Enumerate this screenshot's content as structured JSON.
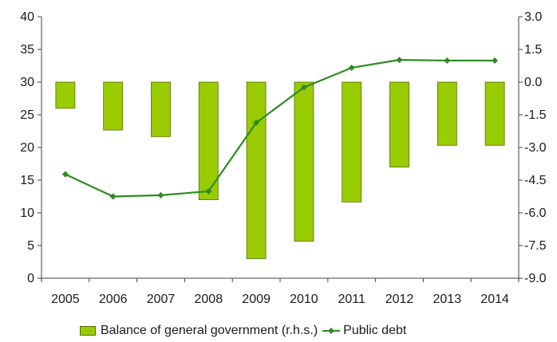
{
  "chart_data": {
    "type": "bar+line",
    "title": "",
    "categories": [
      "2005",
      "2006",
      "2007",
      "2008",
      "2009",
      "2010",
      "2011",
      "2012",
      "2013",
      "2014"
    ],
    "series": [
      {
        "name": "Balance of general government (r.h.s.)",
        "kind": "bar",
        "axis": "right",
        "color": "#99cc00",
        "values": [
          -1.2,
          -2.2,
          -2.5,
          -5.4,
          -8.1,
          -7.3,
          -5.5,
          -3.9,
          -2.9,
          -2.9
        ]
      },
      {
        "name": "Public debt",
        "kind": "line",
        "axis": "left",
        "color": "#2e8b22",
        "values": [
          15.9,
          12.5,
          12.7,
          13.3,
          23.8,
          29.2,
          32.2,
          33.4,
          33.3,
          33.3
        ]
      }
    ],
    "y_left": {
      "min": 0,
      "max": 40,
      "ticks": [
        "0",
        "5",
        "10",
        "15",
        "20",
        "25",
        "30",
        "35",
        "40"
      ]
    },
    "y_right": {
      "min": -9.0,
      "max": 3.0,
      "ticks": [
        "-9.0",
        "-7.5",
        "-6.0",
        "-4.5",
        "-3.0",
        "-1.5",
        "0.0",
        "1.5",
        "3.0"
      ]
    },
    "grid": false,
    "legend_position": "bottom"
  }
}
